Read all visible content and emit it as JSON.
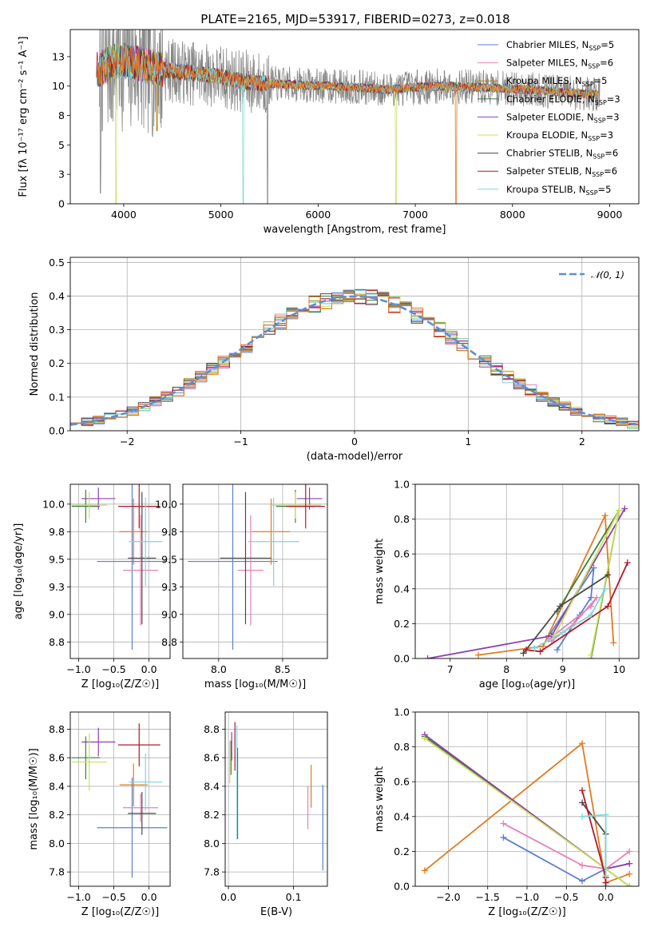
{
  "figure_title": "PLATE=2165, MJD=53917, FIBERID=0273, z=0.018",
  "series": [
    {
      "name": "Chabrier MILES, N$_{SSP}$=5",
      "label": "Chabrier MILES, N",
      "sub": "SSP",
      "tail": "=5",
      "color": "#5b7fd1"
    },
    {
      "name": "Salpeter MILES, N$_{SSP}$=6",
      "label": "Salpeter MILES, N",
      "sub": "SSP",
      "tail": "=6",
      "color": "#e583b8"
    },
    {
      "name": "Kroupa MILES, N$_{SSP}$=5",
      "label": "Kroupa MILES, N",
      "sub": "SSP",
      "tail": "=5",
      "color": "#b8860b"
    },
    {
      "name": "Chabrier ELODIE, N$_{SSP}$=3",
      "label": "Chabrier ELODIE, N",
      "sub": "SSP",
      "tail": "=3",
      "color": "#3f7f3f"
    },
    {
      "name": "Salpeter ELODIE, N$_{SSP}$=3",
      "label": "Salpeter ELODIE, N",
      "sub": "SSP",
      "tail": "=3",
      "color": "#8e3fb0"
    },
    {
      "name": "Kroupa ELODIE, N$_{SSP}$=3",
      "label": "Kroupa ELODIE, N",
      "sub": "SSP",
      "tail": "=3",
      "color": "#c9e05a"
    },
    {
      "name": "Chabrier STELIB, N$_{SSP}$=6",
      "label": "Chabrier STELIB, N",
      "sub": "SSP",
      "tail": "=6",
      "color": "#4a4a4a"
    },
    {
      "name": "Salpeter STELIB, N$_{SSP}$=6",
      "label": "Salpeter STELIB, N",
      "sub": "SSP",
      "tail": "=6",
      "color": "#b2182b"
    },
    {
      "name": "Kroupa STELIB, N$_{SSP}$=5",
      "label": "Kroupa STELIB, N",
      "sub": "SSP",
      "tail": "=5",
      "color": "#7fd6d6"
    }
  ],
  "accent_colors": {
    "orange": "#e07b22",
    "normal_curve": "#5b8fd6",
    "data_gray": "#888888"
  },
  "chart_data": [
    {
      "id": "spectrum",
      "type": "line",
      "title": "PLATE=2165, MJD=53917, FIBERID=0273, z=0.018",
      "xlabel": "wavelength [Angstrom, rest frame]",
      "ylabel": "Flux [fλ 10⁻¹⁷ erg cm⁻² s⁻¹ A⁻¹]",
      "xlim": [
        3450,
        9300
      ],
      "ylim": [
        0,
        14.8
      ],
      "xticks": [
        4000,
        5000,
        6000,
        7000,
        8000,
        9000
      ],
      "yticks": [
        0.0,
        2.5,
        5.0,
        7.5,
        10.0,
        12.5
      ],
      "legend": "top-right",
      "continuum_points": [
        [
          3750,
          11.4
        ],
        [
          3850,
          11.9
        ],
        [
          3950,
          12.2
        ],
        [
          4100,
          12.0
        ],
        [
          4300,
          11.6
        ],
        [
          4500,
          11.3
        ],
        [
          4800,
          11.0
        ],
        [
          5000,
          10.8
        ],
        [
          5200,
          10.4
        ],
        [
          5500,
          10.2
        ],
        [
          5800,
          10.1
        ],
        [
          6100,
          10.0
        ],
        [
          6400,
          9.9
        ],
        [
          6700,
          9.7
        ],
        [
          7000,
          9.9
        ],
        [
          7300,
          10.0
        ],
        [
          7600,
          9.9
        ],
        [
          7900,
          9.8
        ],
        [
          8200,
          9.7
        ],
        [
          8500,
          9.5
        ],
        [
          8800,
          9.3
        ]
      ],
      "data_range": [
        3750,
        8900
      ],
      "model_range": [
        3720,
        8880
      ],
      "deep_drops": [
        {
          "x": 3920,
          "y": 0.0,
          "series": 5
        },
        {
          "x": 4340,
          "y": 6.2,
          "series": 2
        },
        {
          "x": 5230,
          "y": 0.0,
          "series": 8
        },
        {
          "x": 5480,
          "y": 0.0,
          "series": "data"
        },
        {
          "x": 6800,
          "y": 0.0,
          "series": 5
        },
        {
          "x": 7420,
          "y": 0.0,
          "series": "orange"
        },
        {
          "x": 3760,
          "y": 0.9,
          "series": "data"
        }
      ]
    },
    {
      "id": "residuals",
      "type": "histogram",
      "xlabel": "(data-model)/error",
      "ylabel": "Normed distribution",
      "xlim": [
        -2.5,
        2.5
      ],
      "ylim": [
        0,
        0.515
      ],
      "xticks": [
        -2,
        -1,
        0,
        1,
        2
      ],
      "yticks": [
        0.0,
        0.1,
        0.2,
        0.3,
        0.4,
        0.5
      ],
      "bin_width": 0.1,
      "legend_label": "𝒩(0, 1)",
      "legend": "top-right",
      "grid": true
    },
    {
      "id": "age_vs_Z",
      "type": "errorbar",
      "xlabel": "Z [log₁₀(Z/Z☉)]",
      "ylabel": "age  [log₁₀(age/yr)]",
      "xlim": [
        -1.12,
        0.3
      ],
      "ylim": [
        8.6,
        10.18
      ],
      "xticks": [
        -1.0,
        -0.5,
        0.0
      ],
      "yticks": [
        8.75,
        9.0,
        9.25,
        9.5,
        9.75,
        10.0
      ],
      "points": [
        {
          "x": -0.24,
          "y": 9.48,
          "ex": 0.5,
          "ey": 0.8,
          "c": 0
        },
        {
          "x": -0.12,
          "y": 9.4,
          "ex": 0.25,
          "ey": 0.5,
          "c": 1
        },
        {
          "x": -0.22,
          "y": 9.75,
          "ex": 0.2,
          "ey": 0.3,
          "c": "orange"
        },
        {
          "x": -0.9,
          "y": 9.98,
          "ex": 0.2,
          "ey": 0.15,
          "c": 3
        },
        {
          "x": -0.72,
          "y": 10.05,
          "ex": 0.24,
          "ey": 0.1,
          "c": 4
        },
        {
          "x": -0.85,
          "y": 9.99,
          "ex": 0.25,
          "ey": 0.12,
          "c": 5
        },
        {
          "x": -0.1,
          "y": 9.51,
          "ex": 0.2,
          "ey": 0.6,
          "c": 6
        },
        {
          "x": -0.14,
          "y": 9.98,
          "ex": 0.3,
          "ey": 0.2,
          "c": 7
        },
        {
          "x": -0.05,
          "y": 9.66,
          "ex": 0.24,
          "ey": 0.4,
          "c": 8
        }
      ]
    },
    {
      "id": "age_vs_mass",
      "type": "errorbar",
      "xlabel": "mass [log₁₀(M/M☉)]",
      "ylabel": "",
      "xlim": [
        7.72,
        8.85
      ],
      "ylim": [
        8.6,
        10.18
      ],
      "xticks": [
        8.0,
        8.5
      ],
      "yticks": [
        8.75,
        9.0,
        9.25,
        9.5,
        9.75,
        10.0
      ],
      "points": [
        {
          "x": 8.11,
          "y": 9.48,
          "ex": 0.35,
          "ey": 0.8,
          "c": 0
        },
        {
          "x": 8.25,
          "y": 9.4,
          "ex": 0.1,
          "ey": 0.5,
          "c": 1
        },
        {
          "x": 8.41,
          "y": 9.75,
          "ex": 0.15,
          "ey": 0.3,
          "c": "orange"
        },
        {
          "x": 8.6,
          "y": 9.98,
          "ex": 0.15,
          "ey": 0.15,
          "c": 3
        },
        {
          "x": 8.71,
          "y": 10.05,
          "ex": 0.1,
          "ey": 0.1,
          "c": 4
        },
        {
          "x": 8.6,
          "y": 9.99,
          "ex": 0.2,
          "ey": 0.12,
          "c": 5
        },
        {
          "x": 8.21,
          "y": 9.51,
          "ex": 0.2,
          "ey": 0.6,
          "c": 6
        },
        {
          "x": 8.68,
          "y": 9.98,
          "ex": 0.15,
          "ey": 0.2,
          "c": 7
        },
        {
          "x": 8.43,
          "y": 9.66,
          "ex": 0.2,
          "ey": 0.4,
          "c": 8
        }
      ]
    },
    {
      "id": "weight_vs_age",
      "type": "line",
      "xlabel": "age  [log₁₀(age/yr)]",
      "ylabel": "mass weight",
      "xlim": [
        6.38,
        10.35
      ],
      "ylim": [
        0,
        1.0
      ],
      "xticks": [
        7,
        8,
        9,
        10
      ],
      "yticks": [
        0.0,
        0.2,
        0.4,
        0.6,
        0.8,
        1.0
      ],
      "grid": true,
      "lines": [
        {
          "c": 0,
          "pts": [
            [
              8.75,
              0.13
            ],
            [
              9.55,
              0.52
            ],
            [
              9.5,
              0.35
            ],
            [
              9.3,
              0.25
            ],
            [
              8.9,
              0.05
            ]
          ]
        },
        {
          "c": 1,
          "pts": [
            [
              8.75,
              0.11
            ],
            [
              9.5,
              0.3
            ],
            [
              9.6,
              0.35
            ],
            [
              9.2,
              0.2
            ],
            [
              8.8,
              0.1
            ]
          ]
        },
        {
          "c": "orange",
          "pts": [
            [
              7.5,
              0.02
            ],
            [
              8.65,
              0.07
            ],
            [
              9.75,
              0.82
            ],
            [
              9.9,
              0.09
            ]
          ]
        },
        {
          "c": 3,
          "pts": [
            [
              8.9,
              0.27
            ],
            [
              10.0,
              0.85
            ],
            [
              9.5,
              0.0
            ]
          ]
        },
        {
          "c": 4,
          "pts": [
            [
              6.6,
              0.0
            ],
            [
              8.8,
              0.13
            ],
            [
              10.1,
              0.86
            ]
          ]
        },
        {
          "c": 5,
          "pts": [
            [
              8.85,
              0.13
            ],
            [
              10.0,
              0.85
            ],
            [
              9.5,
              0.02
            ]
          ]
        },
        {
          "c": 6,
          "pts": [
            [
              8.3,
              0.03
            ],
            [
              8.95,
              0.3
            ],
            [
              9.8,
              0.48
            ]
          ]
        },
        {
          "c": 7,
          "pts": [
            [
              8.35,
              0.05
            ],
            [
              8.6,
              0.04
            ],
            [
              9.8,
              0.3
            ],
            [
              10.15,
              0.55
            ]
          ]
        },
        {
          "c": 8,
          "pts": [
            [
              8.5,
              0.06
            ],
            [
              9.0,
              0.15
            ],
            [
              9.5,
              0.25
            ],
            [
              9.75,
              0.4
            ]
          ]
        }
      ]
    },
    {
      "id": "mass_vs_Z",
      "type": "errorbar",
      "xlabel": "Z [log₁₀(Z/Z☉)]",
      "ylabel": "mass [log₁₀(M/M☉)]",
      "xlim": [
        -1.12,
        0.3
      ],
      "ylim": [
        7.7,
        8.92
      ],
      "xticks": [
        -1.0,
        -0.5,
        0.0
      ],
      "yticks": [
        7.8,
        8.0,
        8.2,
        8.4,
        8.6,
        8.8
      ],
      "points": [
        {
          "x": -0.24,
          "y": 8.11,
          "ex": 0.5,
          "ey": 0.35,
          "c": 0
        },
        {
          "x": -0.12,
          "y": 8.25,
          "ex": 0.25,
          "ey": 0.1,
          "c": 1
        },
        {
          "x": -0.22,
          "y": 8.41,
          "ex": 0.2,
          "ey": 0.15,
          "c": "orange"
        },
        {
          "x": -0.9,
          "y": 8.6,
          "ex": 0.2,
          "ey": 0.15,
          "c": 3
        },
        {
          "x": -0.72,
          "y": 8.71,
          "ex": 0.24,
          "ey": 0.1,
          "c": 4
        },
        {
          "x": -0.85,
          "y": 8.57,
          "ex": 0.25,
          "ey": 0.2,
          "c": 5
        },
        {
          "x": -0.1,
          "y": 8.21,
          "ex": 0.2,
          "ey": 0.15,
          "c": 6
        },
        {
          "x": -0.14,
          "y": 8.69,
          "ex": 0.3,
          "ey": 0.15,
          "c": 7
        },
        {
          "x": -0.05,
          "y": 8.43,
          "ex": 0.24,
          "ey": 0.2,
          "c": 8
        }
      ]
    },
    {
      "id": "mass_vs_EBV",
      "type": "errorbar",
      "xlabel": "E(B-V)",
      "ylabel": "",
      "xlim": [
        -0.005,
        0.152
      ],
      "ylim": [
        7.7,
        8.92
      ],
      "xticks": [
        0.0,
        0.1
      ],
      "yticks": [
        7.8,
        8.0,
        8.2,
        8.4,
        8.6,
        8.8
      ],
      "points": [
        {
          "x": 0.145,
          "y": 8.11,
          "ex": 0,
          "ey": 0.3,
          "c": 0
        },
        {
          "x": 0.122,
          "y": 8.25,
          "ex": 0,
          "ey": 0.15,
          "c": 1
        },
        {
          "x": 0.127,
          "y": 8.4,
          "ex": 0,
          "ey": 0.15,
          "c": "orange"
        },
        {
          "x": 0.004,
          "y": 8.6,
          "ex": 0,
          "ey": 0.12,
          "c": 3
        },
        {
          "x": 0.005,
          "y": 8.68,
          "ex": 0,
          "ey": 0.1,
          "c": 4
        },
        {
          "x": 0.002,
          "y": 8.57,
          "ex": 0,
          "ey": 0.15,
          "c": 5
        },
        {
          "x": 0.014,
          "y": 8.35,
          "ex": 0,
          "ey": 0.32,
          "c": 6
        },
        {
          "x": 0.01,
          "y": 8.68,
          "ex": 0,
          "ey": 0.17,
          "c": 7
        },
        {
          "x": 0.013,
          "y": 8.43,
          "ex": 0,
          "ey": 0.4,
          "c": 8
        }
      ]
    },
    {
      "id": "weight_vs_Z",
      "type": "line",
      "xlabel": "Z [log₁₀(Z/Z☉)]",
      "ylabel": "mass weight",
      "xlim": [
        -2.42,
        0.42
      ],
      "ylim": [
        0,
        1.0
      ],
      "xticks": [
        -2.0,
        -1.5,
        -1.0,
        -0.5,
        0.0
      ],
      "yticks": [
        0.0,
        0.2,
        0.4,
        0.6,
        0.8,
        1.0
      ],
      "grid": true,
      "lines": [
        {
          "c": 0,
          "pts": [
            [
              -1.3,
              0.28
            ],
            [
              -0.3,
              0.03
            ],
            [
              0.0,
              0.1
            ],
            [
              0.3,
              0.13
            ]
          ]
        },
        {
          "c": 1,
          "pts": [
            [
              -1.3,
              0.36
            ],
            [
              -0.3,
              0.12
            ],
            [
              0.0,
              0.1
            ],
            [
              0.3,
              0.2
            ]
          ]
        },
        {
          "c": "orange",
          "pts": [
            [
              -2.3,
              0.09
            ],
            [
              -0.3,
              0.82
            ],
            [
              0.0,
              0.02
            ],
            [
              0.3,
              0.07
            ]
          ]
        },
        {
          "c": 3,
          "pts": [
            [
              -2.3,
              0.86
            ],
            [
              0.0,
              0.1
            ],
            [
              0.3,
              0.0
            ]
          ]
        },
        {
          "c": 4,
          "pts": [
            [
              -2.3,
              0.87
            ],
            [
              0.0,
              0.1
            ],
            [
              0.3,
              0.13
            ]
          ]
        },
        {
          "c": 5,
          "pts": [
            [
              -2.3,
              0.85
            ],
            [
              0.0,
              0.1
            ],
            [
              0.3,
              0.0
            ]
          ]
        },
        {
          "c": 6,
          "pts": [
            [
              -0.3,
              0.48
            ],
            [
              0.0,
              0.3
            ],
            [
              0.0,
              0.0
            ]
          ]
        },
        {
          "c": 7,
          "pts": [
            [
              -0.3,
              0.55
            ],
            [
              0.0,
              0.05
            ],
            [
              0.0,
              0.02
            ]
          ]
        },
        {
          "c": 8,
          "pts": [
            [
              -0.3,
              0.4
            ],
            [
              0.0,
              0.41
            ],
            [
              0.0,
              0.06
            ]
          ]
        }
      ]
    }
  ]
}
